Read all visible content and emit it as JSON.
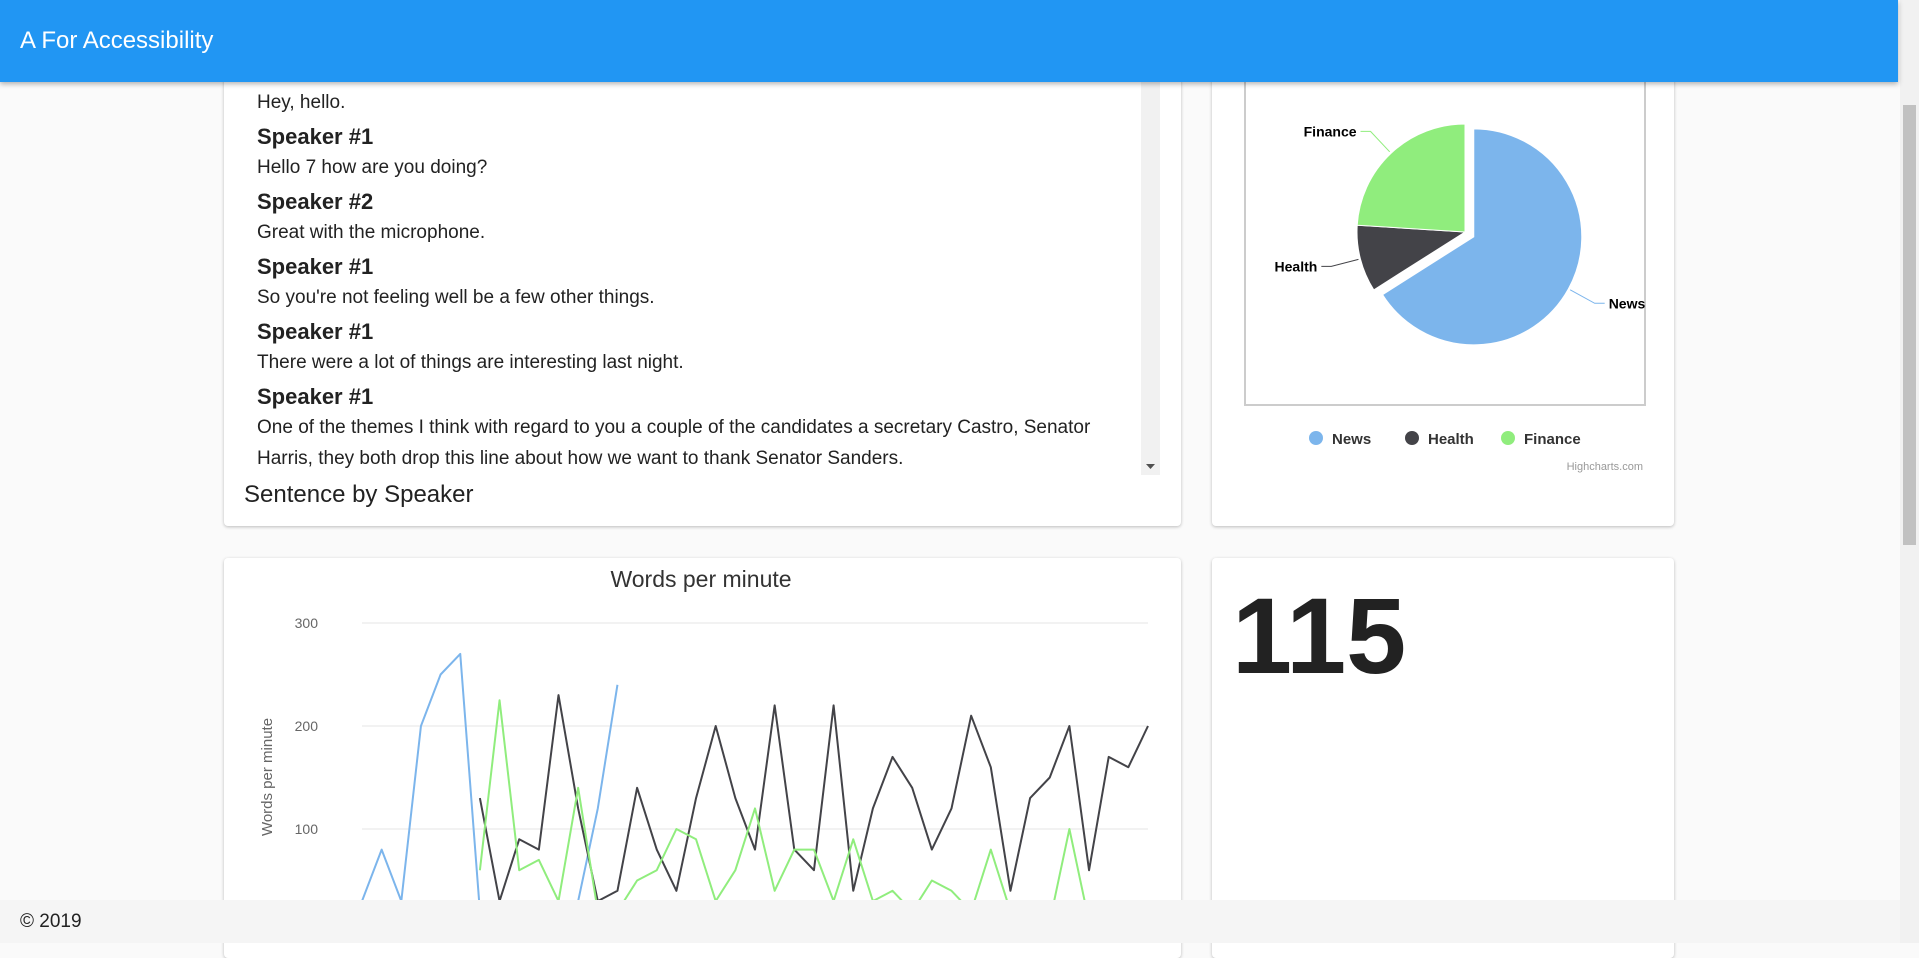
{
  "header": {
    "title": "A For Accessibility"
  },
  "transcript": {
    "lines": [
      {
        "text": "Hey, hello."
      },
      {
        "speaker": "Speaker #1",
        "text": "Hello 7 how are you doing?"
      },
      {
        "speaker": "Speaker #2",
        "text": "Great with the microphone."
      },
      {
        "speaker": "Speaker #1",
        "text": "So you're not feeling well be a few other things."
      },
      {
        "speaker": "Speaker #1",
        "text": "There were a lot of things are interesting last night."
      },
      {
        "speaker": "Speaker #1",
        "text": "One of the themes I think with regard to you a couple of the candidates a secretary Castro, Senator Harris, they both drop this line about how we want to thank Senator Sanders."
      }
    ],
    "title": "Sentence by Speaker"
  },
  "chart_data": [
    {
      "type": "pie",
      "categories": [
        "News",
        "Health",
        "Finance"
      ],
      "values": [
        66,
        10,
        24
      ],
      "colors": [
        "#7cb5ec",
        "#434348",
        "#90ed7d"
      ],
      "sliced": "News",
      "legend": "bottom",
      "credit": "Highcharts.com"
    },
    {
      "type": "line",
      "title": "Words per minute",
      "y_label": "Words per minute",
      "ylim": [
        0,
        300
      ],
      "yticks": [
        100,
        200,
        300
      ],
      "grid": true,
      "series": [
        {
          "color": "#7cb5ec",
          "values": [
            30,
            80,
            30,
            200,
            250,
            270,
            20,
            null,
            null,
            null,
            null,
            30,
            120,
            240,
            null,
            null,
            null,
            null,
            null,
            null,
            null,
            null,
            null,
            null,
            null,
            null,
            null,
            null,
            null,
            null,
            null,
            null,
            null,
            null,
            null,
            null,
            null,
            null,
            null,
            null,
            null
          ]
        },
        {
          "color": "#434348",
          "values": [
            null,
            null,
            null,
            null,
            null,
            null,
            130,
            30,
            90,
            80,
            230,
            120,
            30,
            40,
            140,
            80,
            40,
            130,
            200,
            130,
            80,
            220,
            80,
            60,
            220,
            40,
            120,
            170,
            140,
            80,
            120,
            210,
            160,
            40,
            130,
            150,
            200,
            60,
            170,
            160,
            200
          ]
        },
        {
          "color": "#90ed7d",
          "values": [
            null,
            null,
            null,
            null,
            null,
            null,
            60,
            225,
            60,
            70,
            30,
            140,
            20,
            20,
            50,
            60,
            100,
            90,
            30,
            60,
            120,
            40,
            80,
            80,
            30,
            90,
            30,
            40,
            20,
            50,
            40,
            20,
            80,
            20,
            10,
            10,
            100,
            10,
            null,
            null,
            null
          ]
        }
      ]
    }
  ],
  "stat": {
    "value": 115
  },
  "footer": {
    "text": "© 2019"
  }
}
